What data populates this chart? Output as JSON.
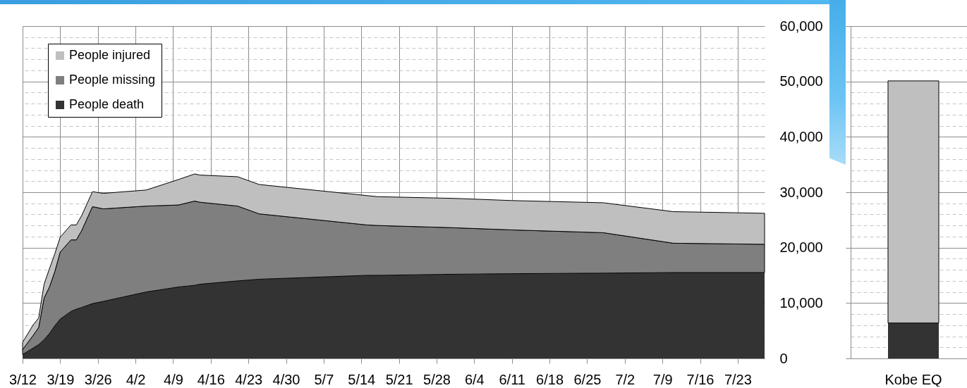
{
  "chart_data": [
    {
      "type": "area",
      "stacked": true,
      "x": [
        "--03-12",
        "--03-14",
        "--03-15",
        "--03-16",
        "--03-17",
        "--03-18",
        "--03-19",
        "--03-21",
        "--03-22",
        "--03-23",
        "--03-25",
        "--03-27",
        "--04-04",
        "--04-10",
        "--04-13",
        "--04-14",
        "--04-21",
        "--04-25",
        "--05-15",
        "--05-17",
        "--05-31",
        "--06-11",
        "--06-28",
        "--07-11",
        "--07-28"
      ],
      "series": [
        {
          "name": "People death",
          "color": "#333333",
          "values": [
            700,
            1900,
            2500,
            3400,
            4500,
            5900,
            7100,
            8500,
            8900,
            9200,
            9900,
            10300,
            12000,
            12900,
            13200,
            13400,
            14000,
            14300,
            15000,
            15000,
            15200,
            15300,
            15400,
            15500,
            15500
          ]
        },
        {
          "name": "People missing",
          "color": "#7f7f7f",
          "values": [
            900,
            2300,
            3100,
            7500,
            8400,
            9800,
            12100,
            12900,
            12500,
            13900,
            17500,
            16700,
            15500,
            14800,
            15200,
            14800,
            13500,
            11800,
            9100,
            9000,
            8400,
            7900,
            7300,
            5300,
            5100
          ]
        },
        {
          "name": "People injured",
          "color": "#bfbfbf",
          "values": [
            1300,
            1900,
            1700,
            2500,
            3300,
            3200,
            2700,
            2700,
            2700,
            2700,
            2700,
            2800,
            2900,
            4600,
            4900,
            4900,
            5300,
            5300,
            5300,
            5200,
            5300,
            5300,
            5400,
            5700,
            5600
          ]
        }
      ],
      "xlim": [
        "--03-12",
        "--07-28"
      ],
      "xticks": [
        {
          "value": "--03-12",
          "label": "3/12"
        },
        {
          "value": "--03-19",
          "label": "3/19"
        },
        {
          "value": "--03-26",
          "label": "3/26"
        },
        {
          "value": "--04-02",
          "label": "4/2"
        },
        {
          "value": "--04-09",
          "label": "4/9"
        },
        {
          "value": "--04-16",
          "label": "4/16"
        },
        {
          "value": "--04-23",
          "label": "4/23"
        },
        {
          "value": "--04-30",
          "label": "4/30"
        },
        {
          "value": "--05-07",
          "label": "5/7"
        },
        {
          "value": "--05-14",
          "label": "5/14"
        },
        {
          "value": "--05-21",
          "label": "5/21"
        },
        {
          "value": "--05-28",
          "label": "5/28"
        },
        {
          "value": "--06-04",
          "label": "6/4"
        },
        {
          "value": "--06-11",
          "label": "6/11"
        },
        {
          "value": "--06-18",
          "label": "6/18"
        },
        {
          "value": "--06-25",
          "label": "6/25"
        },
        {
          "value": "--07-02",
          "label": "7/2"
        },
        {
          "value": "--07-09",
          "label": "7/9"
        },
        {
          "value": "--07-16",
          "label": "7/16"
        },
        {
          "value": "--07-23",
          "label": "7/23"
        }
      ],
      "ylim": [
        0,
        60000
      ],
      "yticks": [
        0,
        {
          "value": 2000,
          "label": null
        },
        {
          "value": 4000,
          "label": null
        },
        {
          "value": 6000,
          "label": null
        },
        {
          "value": 8000,
          "label": null
        },
        {
          "value": 10000,
          "label": "10,000"
        },
        {
          "value": 12000,
          "label": null
        },
        {
          "value": 14000,
          "label": null
        },
        {
          "value": 16000,
          "label": null
        },
        {
          "value": 18000,
          "label": null
        },
        {
          "value": 20000,
          "label": "20,000"
        },
        {
          "value": 22000,
          "label": null
        },
        {
          "value": 24000,
          "label": null
        },
        {
          "value": 26000,
          "label": null
        },
        {
          "value": 28000,
          "label": null
        },
        {
          "value": 30000,
          "label": "30,000"
        },
        {
          "value": 32000,
          "label": null
        },
        {
          "value": 34000,
          "label": null
        },
        {
          "value": 36000,
          "label": null
        },
        {
          "value": 38000,
          "label": null
        },
        {
          "value": 40000,
          "label": "40,000"
        },
        {
          "value": 42000,
          "label": null
        },
        {
          "value": 44000,
          "label": null
        },
        {
          "value": 46000,
          "label": null
        },
        {
          "value": 48000,
          "label": null
        },
        {
          "value": 50000,
          "label": "50,000"
        },
        {
          "value": 52000,
          "label": null
        },
        {
          "value": 54000,
          "label": null
        },
        {
          "value": 56000,
          "label": null
        },
        {
          "value": 58000,
          "label": null
        },
        {
          "value": 60000,
          "label": "60,000"
        }
      ],
      "grid": true,
      "legend": "top left"
    },
    {
      "type": "bar",
      "stacked": true,
      "categories": [
        "Kobe EQ"
      ],
      "series": [
        {
          "color": "#333333",
          "values": [
            6400
          ]
        },
        {
          "color": "#bfbfbf",
          "values": [
            43700
          ]
        }
      ],
      "ylim": [
        0,
        60000
      ],
      "yticks": [
        0,
        {
          "value": 2000,
          "label": null
        },
        {
          "value": 4000,
          "label": null
        },
        {
          "value": 6000,
          "label": null
        },
        {
          "value": 8000,
          "label": null
        },
        10000,
        {
          "value": 12000,
          "label": null
        },
        {
          "value": 14000,
          "label": null
        },
        {
          "value": 16000,
          "label": null
        },
        {
          "value": 18000,
          "label": null
        },
        20000,
        {
          "value": 22000,
          "label": null
        },
        {
          "value": 24000,
          "label": null
        },
        {
          "value": 26000,
          "label": null
        },
        {
          "value": 28000,
          "label": null
        },
        30000,
        {
          "value": 32000,
          "label": null
        },
        {
          "value": 34000,
          "label": null
        },
        {
          "value": 36000,
          "label": null
        },
        {
          "value": 38000,
          "label": null
        },
        40000,
        {
          "value": 42000,
          "label": null
        },
        {
          "value": 44000,
          "label": null
        },
        {
          "value": 46000,
          "label": null
        },
        {
          "value": 48000,
          "label": null
        },
        50000,
        {
          "value": 52000,
          "label": null
        },
        {
          "value": 54000,
          "label": null
        },
        {
          "value": 56000,
          "label": null
        },
        {
          "value": 58000,
          "label": null
        },
        60000
      ],
      "grid": "y",
      "tick_labels": "x"
    }
  ]
}
